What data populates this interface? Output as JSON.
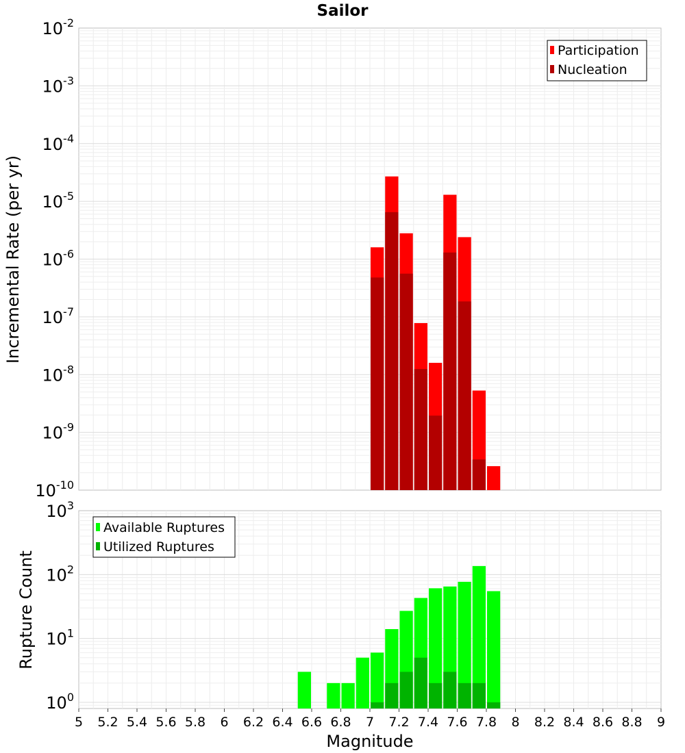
{
  "chart_data": [
    {
      "type": "bar",
      "title": "Sailor",
      "xlabel": "",
      "ylabel": "Incremental Rate (per yr)",
      "yscale": "log",
      "ylim": [
        1e-10,
        0.01
      ],
      "xlim": [
        5,
        9
      ],
      "grid": true,
      "legend_position": "top-right",
      "x": [
        7.05,
        7.15,
        7.25,
        7.35,
        7.45,
        7.55,
        7.65,
        7.75,
        7.85
      ],
      "series": [
        {
          "name": "Participation",
          "color": "#ff0000",
          "values": [
            1.6e-06,
            2.7e-05,
            2.8e-06,
            7.8e-08,
            1.6e-08,
            1.3e-05,
            2.4e-06,
            5.3e-09,
            2.6e-10
          ]
        },
        {
          "name": "Nucleation",
          "color": "#b30000",
          "values": [
            4.8e-07,
            6.5e-06,
            5.6e-07,
            1.25e-08,
            1.95e-09,
            1.3e-06,
            1.85e-07,
            3.4e-10,
            null
          ]
        }
      ],
      "y_ticks": [
        {
          "base": "10",
          "exp": "-10",
          "value": 1e-10
        },
        {
          "base": "10",
          "exp": "-9",
          "value": 1e-09
        },
        {
          "base": "10",
          "exp": "-8",
          "value": 1e-08
        },
        {
          "base": "10",
          "exp": "-7",
          "value": 1e-07
        },
        {
          "base": "10",
          "exp": "-6",
          "value": 1e-06
        },
        {
          "base": "10",
          "exp": "-5",
          "value": 1e-05
        },
        {
          "base": "10",
          "exp": "-4",
          "value": 0.0001
        },
        {
          "base": "10",
          "exp": "-3",
          "value": 0.001
        },
        {
          "base": "10",
          "exp": "-2",
          "value": 0.01
        }
      ]
    },
    {
      "type": "bar",
      "title": "",
      "xlabel": "Magnitude",
      "ylabel": "Rupture Count",
      "yscale": "log",
      "ylim": [
        0.8,
        1000
      ],
      "xlim": [
        5,
        9
      ],
      "grid": true,
      "legend_position": "top-left",
      "x": [
        6.55,
        6.75,
        6.85,
        6.95,
        7.05,
        7.15,
        7.25,
        7.35,
        7.45,
        7.55,
        7.65,
        7.75,
        7.85
      ],
      "series": [
        {
          "name": "Available Ruptures",
          "color": "#00ff00",
          "values": [
            3,
            2,
            2,
            5,
            6,
            14,
            27,
            43,
            61,
            65,
            77,
            136,
            55
          ]
        },
        {
          "name": "Utilized Ruptures",
          "color": "#00b300",
          "values": [
            null,
            null,
            null,
            null,
            1,
            2,
            3,
            5,
            2,
            3,
            2,
            2,
            1
          ]
        }
      ],
      "y_ticks": [
        {
          "base": "10",
          "exp": "0",
          "value": 1
        },
        {
          "base": "10",
          "exp": "1",
          "value": 10
        },
        {
          "base": "10",
          "exp": "2",
          "value": 100
        },
        {
          "base": "10",
          "exp": "3",
          "value": 1000
        }
      ],
      "x_ticks": [
        "5",
        "5.2",
        "5.4",
        "5.6",
        "5.8",
        "6",
        "6.2",
        "6.4",
        "6.6",
        "6.8",
        "7",
        "7.2",
        "7.4",
        "7.6",
        "7.8",
        "8",
        "8.2",
        "8.4",
        "8.6",
        "8.8",
        "9"
      ]
    }
  ]
}
